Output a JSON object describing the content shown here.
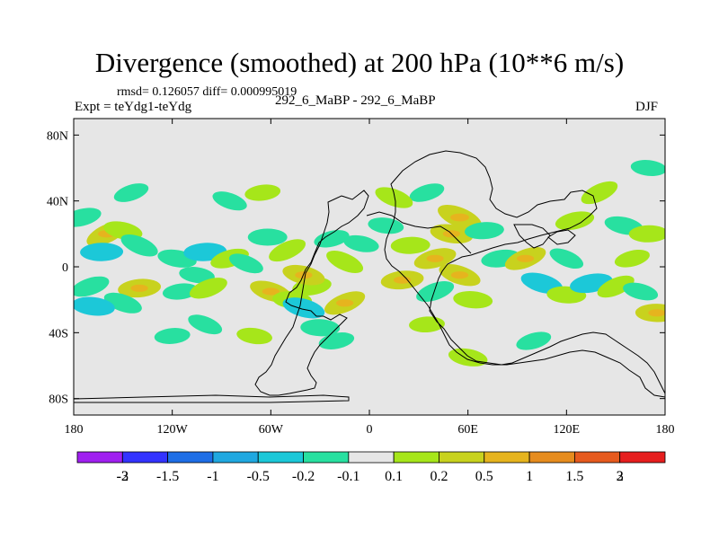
{
  "chart_data": {
    "type": "heatmap",
    "title": "Divergence (smoothed) at 200 hPa (10**6 m/s)",
    "stats_line": "rmsd= 0.126057 diff= 0.000995019",
    "subtitle_left": "Expt = teYdg1-teYdg",
    "subtitle_center": "292_6_MaBP - 292_6_MaBP",
    "subtitle_right": "DJF",
    "x_axis": {
      "range": [
        -180,
        180
      ],
      "ticks": [
        {
          "value": -180,
          "label": "180"
        },
        {
          "value": -120,
          "label": "120W"
        },
        {
          "value": -60,
          "label": "60W"
        },
        {
          "value": 0,
          "label": "0"
        },
        {
          "value": 60,
          "label": "60E"
        },
        {
          "value": 120,
          "label": "120E"
        },
        {
          "value": 180,
          "label": "180"
        }
      ]
    },
    "y_axis": {
      "range": [
        -90,
        90
      ],
      "ticks": [
        {
          "value": 80,
          "label": "80N"
        },
        {
          "value": 40,
          "label": "40N"
        },
        {
          "value": 0,
          "label": "0"
        },
        {
          "value": -40,
          "label": "40S"
        },
        {
          "value": -80,
          "label": "80S"
        }
      ]
    },
    "colorbar": {
      "colors": [
        "#a020f0",
        "#3333ff",
        "#1e6ee6",
        "#20a8e0",
        "#1cc8d8",
        "#28e0a0",
        "#e6e6e6",
        "#a6e61a",
        "#c8d21e",
        "#e6b41e",
        "#e68c1e",
        "#e65a1e",
        "#e61e1e"
      ],
      "labels": [
        "-3",
        "-2",
        "-1.5",
        "-1",
        "-0.5",
        "-0.2",
        "-0.1",
        "0.1",
        "0.2",
        "0.5",
        "1",
        "1.5",
        "2",
        "3"
      ]
    },
    "features": [
      {
        "lon": -160,
        "lat": 20,
        "v": 0.3
      },
      {
        "lon": -150,
        "lat": 22,
        "v": 0.25
      },
      {
        "lon": -163,
        "lat": 9,
        "v": -0.3
      },
      {
        "lon": -175,
        "lat": 30,
        "v": -0.25
      },
      {
        "lon": -140,
        "lat": 13,
        "v": -0.25
      },
      {
        "lon": -117,
        "lat": 5,
        "v": -0.25
      },
      {
        "lon": -100,
        "lat": 9,
        "v": -0.3
      },
      {
        "lon": -85,
        "lat": 5,
        "v": 0.25
      },
      {
        "lon": -75,
        "lat": 2,
        "v": -0.2
      },
      {
        "lon": -105,
        "lat": -5,
        "v": -0.2
      },
      {
        "lon": -140,
        "lat": -13,
        "v": 0.3
      },
      {
        "lon": -170,
        "lat": -12,
        "v": -0.25
      },
      {
        "lon": -150,
        "lat": -22,
        "v": -0.25
      },
      {
        "lon": -168,
        "lat": -24,
        "v": -0.3
      },
      {
        "lon": -115,
        "lat": -15,
        "v": -0.2
      },
      {
        "lon": -98,
        "lat": -13,
        "v": 0.25
      },
      {
        "lon": -60,
        "lat": -15,
        "v": 0.3
      },
      {
        "lon": -47,
        "lat": -20,
        "v": 0.25
      },
      {
        "lon": -35,
        "lat": -12,
        "v": 0.25
      },
      {
        "lon": -15,
        "lat": -22,
        "v": 0.3
      },
      {
        "lon": -40,
        "lat": -25,
        "v": -0.3
      },
      {
        "lon": -30,
        "lat": -37,
        "v": -0.25
      },
      {
        "lon": -20,
        "lat": -45,
        "v": -0.2
      },
      {
        "lon": -50,
        "lat": 10,
        "v": 0.25
      },
      {
        "lon": -40,
        "lat": -5,
        "v": 0.3
      },
      {
        "lon": -62,
        "lat": 18,
        "v": -0.25
      },
      {
        "lon": -23,
        "lat": 17,
        "v": -0.2
      },
      {
        "lon": -15,
        "lat": 3,
        "v": 0.25
      },
      {
        "lon": -5,
        "lat": 14,
        "v": -0.2
      },
      {
        "lon": 25,
        "lat": 13,
        "v": 0.25
      },
      {
        "lon": 40,
        "lat": 5,
        "v": 0.3
      },
      {
        "lon": 55,
        "lat": 30,
        "v": 0.35
      },
      {
        "lon": 50,
        "lat": 20,
        "v": 0.3
      },
      {
        "lon": 70,
        "lat": 22,
        "v": -0.25
      },
      {
        "lon": 35,
        "lat": 45,
        "v": -0.2
      },
      {
        "lon": 15,
        "lat": 42,
        "v": 0.25
      },
      {
        "lon": 10,
        "lat": 25,
        "v": -0.2
      },
      {
        "lon": 20,
        "lat": -8,
        "v": 0.3
      },
      {
        "lon": 40,
        "lat": -15,
        "v": -0.25
      },
      {
        "lon": 55,
        "lat": -5,
        "v": 0.3
      },
      {
        "lon": 63,
        "lat": -20,
        "v": 0.25
      },
      {
        "lon": 80,
        "lat": 5,
        "v": -0.25
      },
      {
        "lon": 95,
        "lat": 5,
        "v": 0.3
      },
      {
        "lon": 105,
        "lat": -10,
        "v": -0.3
      },
      {
        "lon": 120,
        "lat": -17,
        "v": 0.25
      },
      {
        "lon": 135,
        "lat": -10,
        "v": -0.3
      },
      {
        "lon": 150,
        "lat": -12,
        "v": 0.25
      },
      {
        "lon": 165,
        "lat": -15,
        "v": -0.2
      },
      {
        "lon": 175,
        "lat": -28,
        "v": 0.3
      },
      {
        "lon": 125,
        "lat": 28,
        "v": 0.25
      },
      {
        "lon": 140,
        "lat": 45,
        "v": 0.25
      },
      {
        "lon": 155,
        "lat": 25,
        "v": -0.25
      },
      {
        "lon": 170,
        "lat": 20,
        "v": 0.25
      },
      {
        "lon": 160,
        "lat": 5,
        "v": 0.2
      },
      {
        "lon": 120,
        "lat": 5,
        "v": -0.2
      },
      {
        "lon": 60,
        "lat": -55,
        "v": 0.25
      },
      {
        "lon": 35,
        "lat": -35,
        "v": 0.2
      },
      {
        "lon": 100,
        "lat": -45,
        "v": -0.2
      },
      {
        "lon": -100,
        "lat": -35,
        "v": -0.2
      },
      {
        "lon": -70,
        "lat": -42,
        "v": 0.2
      },
      {
        "lon": -120,
        "lat": -42,
        "v": -0.2
      },
      {
        "lon": -145,
        "lat": 45,
        "v": -0.2
      },
      {
        "lon": -85,
        "lat": 40,
        "v": -0.2
      },
      {
        "lon": 170,
        "lat": 60,
        "v": -0.2
      },
      {
        "lon": -65,
        "lat": 45,
        "v": 0.2
      }
    ]
  }
}
